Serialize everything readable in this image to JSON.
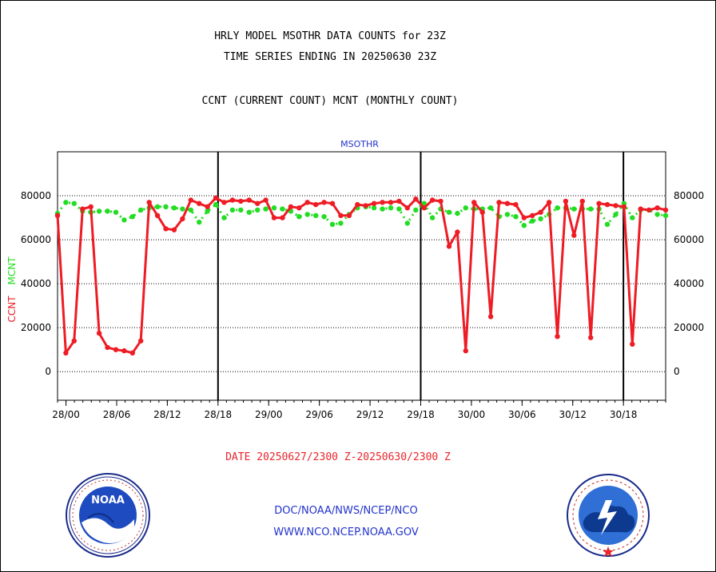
{
  "header": {
    "title_line1": "HRLY MODEL MSOTHR DATA COUNTS for 23Z",
    "title_line2": "TIME SERIES ENDING IN 20250630 23Z",
    "subtitle": "CCNT (CURRENT COUNT) MCNT (MONTHLY COUNT)"
  },
  "footer": {
    "date_range": "DATE 20250627/2300 Z-20250630/2300 Z",
    "org_line": "DOC/NOAA/NWS/NCEP/NCO",
    "url_line": "WWW.NCO.NCEP.NOAA.GOV"
  },
  "logos": {
    "noaa_label": "NOAA",
    "nws_label": "NATIONAL WEATHER SERVICE"
  },
  "colors": {
    "ccnt": "#ee1c25",
    "mcnt": "#22dd22",
    "plot_title": "#2233cc",
    "footer_text": "#2233cc"
  },
  "chart_data": {
    "type": "line",
    "plot_title": "MSOTHR",
    "ylabel_parts": [
      "CCNT",
      "MCNT"
    ],
    "ylim": [
      -13000,
      100000
    ],
    "yticks": [
      0,
      20000,
      40000,
      60000,
      80000
    ],
    "ytick_labels": [
      "0",
      "20000",
      "40000",
      "60000",
      "80000"
    ],
    "x_start_hour": -1,
    "x_end_hour": 71,
    "xticks": [
      0,
      6,
      12,
      18,
      24,
      30,
      36,
      42,
      48,
      54,
      60,
      66
    ],
    "xtick_labels": [
      "28/00",
      "28/06",
      "28/12",
      "28/18",
      "29/00",
      "29/06",
      "29/12",
      "29/18",
      "30/00",
      "30/06",
      "30/12",
      "30/18"
    ],
    "day_separators": [
      18,
      42,
      66
    ],
    "grid_horizontal": true,
    "series": [
      {
        "name": "CCNT",
        "color": "#ee1c25",
        "values": [
          71000,
          8500,
          14000,
          74000,
          75000,
          17500,
          11000,
          10000,
          9500,
          8500,
          14000,
          77000,
          71000,
          65000,
          64500,
          69500,
          78000,
          76500,
          75000,
          79000,
          77000,
          78000,
          77500,
          78000,
          76500,
          78000,
          70000,
          70000,
          75000,
          74500,
          77000,
          76000,
          77000,
          76500,
          71000,
          71000,
          76000,
          75500,
          76500,
          77000,
          77000,
          77500,
          74500,
          78500,
          74500,
          78000,
          77500,
          57000,
          63500,
          9500,
          77000,
          72500,
          25000,
          77000,
          76500,
          76000,
          70000,
          71000,
          72500,
          77000,
          16000,
          77500,
          62000,
          77500,
          15500,
          76500,
          76000,
          75500,
          75000,
          12500,
          74000,
          73500,
          74500,
          73500
        ]
      },
      {
        "name": "MCNT",
        "color": "#22dd22",
        "values": [
          72000,
          77000,
          76500,
          73000,
          72500,
          73000,
          73000,
          72500,
          69000,
          70500,
          73500,
          74500,
          75000,
          75000,
          74500,
          74000,
          73500,
          68000,
          73000,
          76000,
          70000,
          73500,
          73500,
          72500,
          73500,
          74000,
          74500,
          74000,
          73000,
          70500,
          71500,
          71000,
          70500,
          67000,
          67500,
          71500,
          74500,
          75000,
          74500,
          74000,
          74500,
          74000,
          67500,
          73500,
          76500,
          70000,
          74000,
          72500,
          72000,
          74500,
          74000,
          74000,
          74500,
          70500,
          71500,
          70500,
          66500,
          68500,
          69500,
          71500,
          74500,
          74500,
          74000,
          74000,
          74000,
          74000,
          67000,
          71500,
          76500,
          70000,
          73500,
          73500,
          71500,
          71000
        ]
      }
    ]
  }
}
